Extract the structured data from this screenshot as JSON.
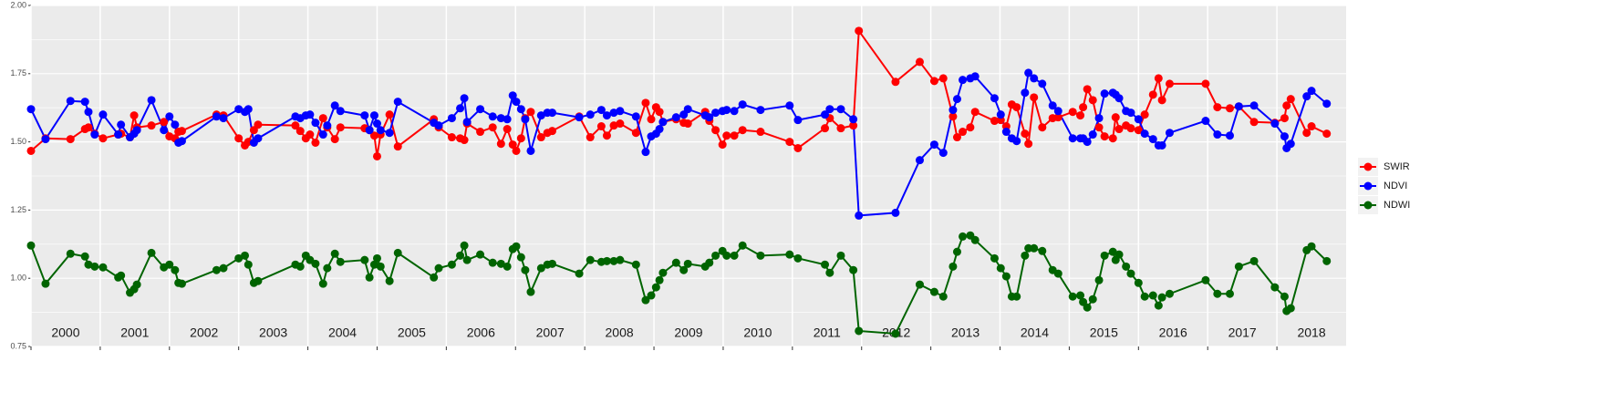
{
  "chart_data": {
    "type": "line",
    "x": [
      2000.0,
      2000.21,
      2000.57,
      2000.78,
      2000.83,
      2000.92,
      2001.04,
      2001.26,
      2001.3,
      2001.43,
      2001.49,
      2001.53,
      2001.74,
      2001.92,
      2002.0,
      2002.08,
      2002.13,
      2002.18,
      2002.68,
      2002.78,
      2003.0,
      2003.09,
      2003.14,
      2003.22,
      2003.28,
      2003.82,
      2003.89,
      2003.97,
      2004.03,
      2004.11,
      2004.22,
      2004.28,
      2004.39,
      2004.47,
      2004.82,
      2004.89,
      2004.96,
      2005.0,
      2005.05,
      2005.18,
      2005.3,
      2005.82,
      2005.89,
      2006.08,
      2006.2,
      2006.26,
      2006.3,
      2006.49,
      2006.67,
      2006.79,
      2006.88,
      2006.96,
      2007.01,
      2007.08,
      2007.14,
      2007.22,
      2007.37,
      2007.46,
      2007.53,
      2007.92,
      2008.08,
      2008.24,
      2008.32,
      2008.42,
      2008.51,
      2008.74,
      2008.88,
      2008.96,
      2009.03,
      2009.08,
      2009.13,
      2009.32,
      2009.43,
      2009.49,
      2009.74,
      2009.8,
      2009.89,
      2009.99,
      2010.05,
      2010.16,
      2010.28,
      2010.54,
      2010.96,
      2011.08,
      2011.47,
      2011.54,
      2011.7,
      2011.88,
      2011.96,
      2012.49,
      2012.84,
      2013.05,
      2013.18,
      2013.32,
      2013.38,
      2013.46,
      2013.57,
      2013.64,
      2013.92,
      2014.01,
      2014.09,
      2014.17,
      2014.24,
      2014.36,
      2014.41,
      2014.49,
      2014.61,
      2014.76,
      2014.84,
      2015.05,
      2015.16,
      2015.2,
      2015.26,
      2015.34,
      2015.43,
      2015.51,
      2015.63,
      2015.67,
      2015.72,
      2015.82,
      2015.89,
      2016.0,
      2016.09,
      2016.21,
      2016.29,
      2016.34,
      2016.45,
      2016.97,
      2017.14,
      2017.32,
      2017.45,
      2017.67,
      2017.97,
      2018.11,
      2018.14,
      2018.2,
      2018.43,
      2018.5,
      2018.72
    ],
    "series": [
      {
        "name": "SWIR",
        "color": "#ff0000",
        "values": [
          1.467,
          1.513,
          1.51,
          1.547,
          1.553,
          1.53,
          1.513,
          1.527,
          1.53,
          1.517,
          1.597,
          1.553,
          1.56,
          1.573,
          1.52,
          1.513,
          1.537,
          1.54,
          1.6,
          1.597,
          1.513,
          1.487,
          1.5,
          1.543,
          1.563,
          1.56,
          1.54,
          1.513,
          1.527,
          1.497,
          1.587,
          1.553,
          1.51,
          1.553,
          1.55,
          1.543,
          1.523,
          1.447,
          1.527,
          1.6,
          1.483,
          1.583,
          1.553,
          1.517,
          1.513,
          1.507,
          1.567,
          1.537,
          1.553,
          1.493,
          1.547,
          1.49,
          1.467,
          1.513,
          1.587,
          1.61,
          1.517,
          1.533,
          1.54,
          1.593,
          1.517,
          1.557,
          1.523,
          1.56,
          1.567,
          1.533,
          1.643,
          1.583,
          1.627,
          1.61,
          1.573,
          1.583,
          1.57,
          1.567,
          1.61,
          1.577,
          1.543,
          1.49,
          1.523,
          1.523,
          1.543,
          1.537,
          1.5,
          1.477,
          1.55,
          1.587,
          1.55,
          1.56,
          1.907,
          1.72,
          1.793,
          1.723,
          1.733,
          1.593,
          1.517,
          1.537,
          1.553,
          1.61,
          1.577,
          1.58,
          1.557,
          1.637,
          1.627,
          1.53,
          1.493,
          1.663,
          1.553,
          1.587,
          1.59,
          1.61,
          1.597,
          1.627,
          1.693,
          1.653,
          1.553,
          1.52,
          1.513,
          1.59,
          1.547,
          1.56,
          1.55,
          1.543,
          1.6,
          1.673,
          1.733,
          1.653,
          1.713,
          1.713,
          1.627,
          1.623,
          1.63,
          1.573,
          1.57,
          1.587,
          1.633,
          1.657,
          1.533,
          1.557,
          1.53
        ]
      },
      {
        "name": "NDVI",
        "color": "#0000ff",
        "values": [
          1.62,
          1.51,
          1.65,
          1.647,
          1.61,
          1.527,
          1.6,
          1.527,
          1.563,
          1.517,
          1.53,
          1.543,
          1.653,
          1.543,
          1.593,
          1.563,
          1.497,
          1.503,
          1.593,
          1.587,
          1.62,
          1.61,
          1.62,
          1.497,
          1.513,
          1.593,
          1.587,
          1.597,
          1.6,
          1.57,
          1.527,
          1.56,
          1.633,
          1.613,
          1.597,
          1.543,
          1.597,
          1.567,
          1.543,
          1.533,
          1.647,
          1.57,
          1.56,
          1.587,
          1.623,
          1.66,
          1.573,
          1.62,
          1.593,
          1.587,
          1.583,
          1.67,
          1.647,
          1.62,
          1.583,
          1.467,
          1.597,
          1.607,
          1.607,
          1.59,
          1.6,
          1.617,
          1.597,
          1.607,
          1.613,
          1.593,
          1.463,
          1.52,
          1.53,
          1.547,
          1.573,
          1.59,
          1.6,
          1.62,
          1.597,
          1.59,
          1.607,
          1.613,
          1.617,
          1.613,
          1.637,
          1.617,
          1.633,
          1.58,
          1.6,
          1.62,
          1.62,
          1.583,
          1.23,
          1.24,
          1.433,
          1.49,
          1.46,
          1.617,
          1.657,
          1.727,
          1.733,
          1.74,
          1.66,
          1.6,
          1.537,
          1.513,
          1.503,
          1.68,
          1.753,
          1.733,
          1.713,
          1.633,
          1.613,
          1.513,
          1.513,
          1.513,
          1.5,
          1.527,
          1.587,
          1.677,
          1.68,
          1.673,
          1.66,
          1.613,
          1.607,
          1.583,
          1.53,
          1.51,
          1.487,
          1.487,
          1.533,
          1.577,
          1.527,
          1.523,
          1.63,
          1.633,
          1.567,
          1.52,
          1.477,
          1.493,
          1.667,
          1.687,
          1.64
        ]
      },
      {
        "name": "NDWI",
        "color": "#006400",
        "values": [
          1.12,
          0.98,
          1.09,
          1.08,
          1.05,
          1.043,
          1.04,
          1.003,
          1.01,
          0.947,
          0.96,
          0.977,
          1.093,
          1.04,
          1.05,
          1.03,
          0.983,
          0.98,
          1.03,
          1.037,
          1.073,
          1.083,
          1.05,
          0.983,
          0.99,
          1.05,
          1.043,
          1.083,
          1.067,
          1.053,
          0.98,
          1.037,
          1.09,
          1.06,
          1.067,
          1.003,
          1.05,
          1.073,
          1.043,
          0.99,
          1.093,
          1.003,
          1.037,
          1.05,
          1.083,
          1.12,
          1.067,
          1.087,
          1.057,
          1.053,
          1.043,
          1.107,
          1.117,
          1.077,
          1.03,
          0.95,
          1.037,
          1.05,
          1.053,
          1.017,
          1.067,
          1.06,
          1.063,
          1.063,
          1.067,
          1.05,
          0.92,
          0.937,
          0.967,
          0.993,
          1.02,
          1.057,
          1.03,
          1.053,
          1.043,
          1.057,
          1.083,
          1.1,
          1.083,
          1.083,
          1.12,
          1.083,
          1.087,
          1.073,
          1.05,
          1.02,
          1.083,
          1.03,
          0.807,
          0.797,
          0.977,
          0.95,
          0.933,
          1.043,
          1.097,
          1.153,
          1.157,
          1.14,
          1.073,
          1.037,
          1.007,
          0.933,
          0.933,
          1.083,
          1.11,
          1.11,
          1.1,
          1.03,
          1.017,
          0.933,
          0.937,
          0.913,
          0.893,
          0.923,
          0.993,
          1.083,
          1.097,
          1.067,
          1.087,
          1.043,
          1.017,
          0.983,
          0.933,
          0.937,
          0.9,
          0.93,
          0.943,
          0.993,
          0.943,
          0.943,
          1.043,
          1.063,
          0.967,
          0.933,
          0.88,
          0.89,
          1.103,
          1.117,
          1.063
        ]
      }
    ],
    "xlim": [
      2000,
      2019
    ],
    "xticks": [
      2000,
      2001,
      2002,
      2003,
      2004,
      2005,
      2006,
      2007,
      2008,
      2009,
      2010,
      2011,
      2012,
      2013,
      2014,
      2015,
      2016,
      2017,
      2018
    ],
    "ylim": [
      0.75,
      2
    ],
    "yticks": [
      0.75,
      {
        "value": 1,
        "label": "1.00"
      },
      1.25,
      {
        "value": 1.5,
        "label": "1.50"
      },
      1.75,
      {
        "value": 2,
        "label": "2.00"
      }
    ],
    "grid": true,
    "legend": "right"
  }
}
